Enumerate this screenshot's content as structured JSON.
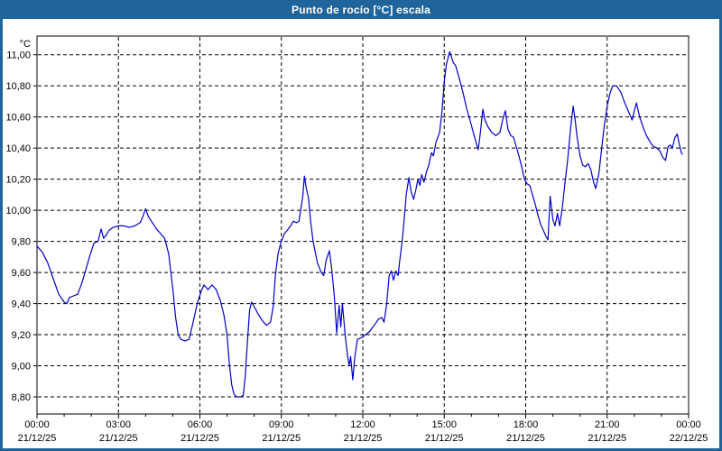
{
  "window": {
    "title": "Punto de rocío [°C] escala"
  },
  "colors": {
    "header_bg": "#1f649b",
    "frame_border": "#1f649b",
    "plot_bg": "#ffffff",
    "plot_border": "#000000",
    "grid": "#000000",
    "line": "#0000c8",
    "text": "#000000"
  },
  "chart_data": {
    "type": "line",
    "title": "Punto de rocío [°C] escala",
    "xlabel": "",
    "ylabel": "°C",
    "grid": true,
    "legend": false,
    "y_axis": {
      "unit_label": "°C",
      "min": 8.69,
      "max": 11.12,
      "tick_min": 8.8,
      "tick_max": 11.0,
      "tick_step": 0.2,
      "decimal_separator": ",",
      "tick_labels": [
        "8,80",
        "9,00",
        "9,20",
        "9,40",
        "9,60",
        "9,80",
        "10,00",
        "10,20",
        "10,40",
        "10,60",
        "10,80",
        "11,00"
      ]
    },
    "x_axis": {
      "hours_span": 24,
      "major_tick_every_hours": 3,
      "minor_tick_every_hours": 1,
      "ticks": [
        {
          "hour": 0,
          "time": "00:00",
          "date": "21/12/25"
        },
        {
          "hour": 3,
          "time": "03:00",
          "date": "21/12/25"
        },
        {
          "hour": 6,
          "time": "06:00",
          "date": "21/12/25"
        },
        {
          "hour": 9,
          "time": "09:00",
          "date": "21/12/25"
        },
        {
          "hour": 12,
          "time": "12:00",
          "date": "21/12/25"
        },
        {
          "hour": 15,
          "time": "15:00",
          "date": "21/12/25"
        },
        {
          "hour": 18,
          "time": "18:00",
          "date": "21/12/25"
        },
        {
          "hour": 21,
          "time": "21:00",
          "date": "21/12/25"
        },
        {
          "hour": 24,
          "time": "00:00",
          "date": "22/12/25"
        }
      ]
    },
    "series": [
      {
        "name": "Punto de rocío",
        "color": "#0000c8",
        "points": [
          [
            0.0,
            9.77
          ],
          [
            0.2,
            9.73
          ],
          [
            0.4,
            9.66
          ],
          [
            0.6,
            9.56
          ],
          [
            0.8,
            9.46
          ],
          [
            1.0,
            9.41
          ],
          [
            1.1,
            9.4
          ],
          [
            1.2,
            9.44
          ],
          [
            1.35,
            9.45
          ],
          [
            1.5,
            9.46
          ],
          [
            1.65,
            9.53
          ],
          [
            1.8,
            9.62
          ],
          [
            1.95,
            9.71
          ],
          [
            2.1,
            9.79
          ],
          [
            2.25,
            9.8
          ],
          [
            2.36,
            9.88
          ],
          [
            2.45,
            9.82
          ],
          [
            2.55,
            9.84
          ],
          [
            2.65,
            9.87
          ],
          [
            2.8,
            9.89
          ],
          [
            3.0,
            9.9
          ],
          [
            3.2,
            9.9
          ],
          [
            3.4,
            9.89
          ],
          [
            3.6,
            9.9
          ],
          [
            3.8,
            9.92
          ],
          [
            3.9,
            9.96
          ],
          [
            4.0,
            10.01
          ],
          [
            4.1,
            9.96
          ],
          [
            4.25,
            9.92
          ],
          [
            4.4,
            9.88
          ],
          [
            4.55,
            9.85
          ],
          [
            4.7,
            9.82
          ],
          [
            4.85,
            9.72
          ],
          [
            5.0,
            9.5
          ],
          [
            5.1,
            9.32
          ],
          [
            5.2,
            9.2
          ],
          [
            5.3,
            9.17
          ],
          [
            5.45,
            9.16
          ],
          [
            5.6,
            9.17
          ],
          [
            5.75,
            9.28
          ],
          [
            5.9,
            9.4
          ],
          [
            6.05,
            9.48
          ],
          [
            6.15,
            9.52
          ],
          [
            6.3,
            9.49
          ],
          [
            6.45,
            9.52
          ],
          [
            6.6,
            9.49
          ],
          [
            6.75,
            9.42
          ],
          [
            6.88,
            9.33
          ],
          [
            7.0,
            9.2
          ],
          [
            7.08,
            9.02
          ],
          [
            7.17,
            8.88
          ],
          [
            7.25,
            8.82
          ],
          [
            7.35,
            8.8
          ],
          [
            7.5,
            8.8
          ],
          [
            7.6,
            8.81
          ],
          [
            7.67,
            8.93
          ],
          [
            7.75,
            9.15
          ],
          [
            7.83,
            9.36
          ],
          [
            7.9,
            9.41
          ],
          [
            8.0,
            9.38
          ],
          [
            8.15,
            9.33
          ],
          [
            8.3,
            9.29
          ],
          [
            8.45,
            9.26
          ],
          [
            8.6,
            9.28
          ],
          [
            8.7,
            9.38
          ],
          [
            8.78,
            9.58
          ],
          [
            8.88,
            9.72
          ],
          [
            8.98,
            9.79
          ],
          [
            9.11,
            9.85
          ],
          [
            9.21,
            9.87
          ],
          [
            9.34,
            9.9
          ],
          [
            9.44,
            9.93
          ],
          [
            9.56,
            9.92
          ],
          [
            9.65,
            9.93
          ],
          [
            9.72,
            10.01
          ],
          [
            9.79,
            10.09
          ],
          [
            9.85,
            10.22
          ],
          [
            9.92,
            10.14
          ],
          [
            10.0,
            10.08
          ],
          [
            10.08,
            9.93
          ],
          [
            10.17,
            9.8
          ],
          [
            10.33,
            9.66
          ],
          [
            10.47,
            9.6
          ],
          [
            10.56,
            9.58
          ],
          [
            10.65,
            9.68
          ],
          [
            10.77,
            9.74
          ],
          [
            10.85,
            9.63
          ],
          [
            10.95,
            9.45
          ],
          [
            11.04,
            9.21
          ],
          [
            11.13,
            9.39
          ],
          [
            11.19,
            9.25
          ],
          [
            11.25,
            9.4
          ],
          [
            11.35,
            9.2
          ],
          [
            11.44,
            9.06
          ],
          [
            11.5,
            9.0
          ],
          [
            11.55,
            9.06
          ],
          [
            11.63,
            8.91
          ],
          [
            11.7,
            9.05
          ],
          [
            11.8,
            9.17
          ],
          [
            11.95,
            9.18
          ],
          [
            12.1,
            9.2
          ],
          [
            12.25,
            9.22
          ],
          [
            12.42,
            9.26
          ],
          [
            12.58,
            9.3
          ],
          [
            12.7,
            9.31
          ],
          [
            12.78,
            9.28
          ],
          [
            12.88,
            9.4
          ],
          [
            12.97,
            9.58
          ],
          [
            13.05,
            9.61
          ],
          [
            13.13,
            9.55
          ],
          [
            13.22,
            9.61
          ],
          [
            13.3,
            9.58
          ],
          [
            13.37,
            9.69
          ],
          [
            13.45,
            9.8
          ],
          [
            13.53,
            9.95
          ],
          [
            13.6,
            10.1
          ],
          [
            13.7,
            10.21
          ],
          [
            13.78,
            10.12
          ],
          [
            13.87,
            10.07
          ],
          [
            13.95,
            10.13
          ],
          [
            14.03,
            10.2
          ],
          [
            14.1,
            10.16
          ],
          [
            14.17,
            10.23
          ],
          [
            14.25,
            10.18
          ],
          [
            14.35,
            10.25
          ],
          [
            14.43,
            10.29
          ],
          [
            14.53,
            10.37
          ],
          [
            14.6,
            10.35
          ],
          [
            14.7,
            10.44
          ],
          [
            14.83,
            10.5
          ],
          [
            14.92,
            10.64
          ],
          [
            15.0,
            10.83
          ],
          [
            15.08,
            10.94
          ],
          [
            15.2,
            11.02
          ],
          [
            15.33,
            10.95
          ],
          [
            15.42,
            10.93
          ],
          [
            15.55,
            10.85
          ],
          [
            15.7,
            10.75
          ],
          [
            15.83,
            10.65
          ],
          [
            15.95,
            10.58
          ],
          [
            16.1,
            10.48
          ],
          [
            16.25,
            10.39
          ],
          [
            16.33,
            10.5
          ],
          [
            16.42,
            10.65
          ],
          [
            16.5,
            10.58
          ],
          [
            16.6,
            10.54
          ],
          [
            16.75,
            10.5
          ],
          [
            16.9,
            10.48
          ],
          [
            17.05,
            10.5
          ],
          [
            17.15,
            10.58
          ],
          [
            17.25,
            10.64
          ],
          [
            17.35,
            10.52
          ],
          [
            17.45,
            10.48
          ],
          [
            17.55,
            10.47
          ],
          [
            17.65,
            10.41
          ],
          [
            17.75,
            10.35
          ],
          [
            17.85,
            10.28
          ],
          [
            17.95,
            10.2
          ],
          [
            18.05,
            10.17
          ],
          [
            18.15,
            10.16
          ],
          [
            18.25,
            10.1
          ],
          [
            18.35,
            10.04
          ],
          [
            18.45,
            9.97
          ],
          [
            18.55,
            9.91
          ],
          [
            18.65,
            9.87
          ],
          [
            18.75,
            9.83
          ],
          [
            18.82,
            9.81
          ],
          [
            18.9,
            10.09
          ],
          [
            19.0,
            9.94
          ],
          [
            19.08,
            9.9
          ],
          [
            19.17,
            9.98
          ],
          [
            19.25,
            9.9
          ],
          [
            19.35,
            10.02
          ],
          [
            19.45,
            10.18
          ],
          [
            19.55,
            10.33
          ],
          [
            19.65,
            10.52
          ],
          [
            19.75,
            10.67
          ],
          [
            19.82,
            10.58
          ],
          [
            19.9,
            10.46
          ],
          [
            20.0,
            10.35
          ],
          [
            20.1,
            10.29
          ],
          [
            20.2,
            10.28
          ],
          [
            20.3,
            10.3
          ],
          [
            20.4,
            10.26
          ],
          [
            20.5,
            10.18
          ],
          [
            20.58,
            10.14
          ],
          [
            20.7,
            10.24
          ],
          [
            20.8,
            10.4
          ],
          [
            20.9,
            10.55
          ],
          [
            21.0,
            10.67
          ],
          [
            21.1,
            10.75
          ],
          [
            21.2,
            10.8
          ],
          [
            21.35,
            10.8
          ],
          [
            21.5,
            10.76
          ],
          [
            21.65,
            10.69
          ],
          [
            21.8,
            10.63
          ],
          [
            21.92,
            10.58
          ],
          [
            22.0,
            10.64
          ],
          [
            22.08,
            10.69
          ],
          [
            22.2,
            10.6
          ],
          [
            22.33,
            10.53
          ],
          [
            22.45,
            10.48
          ],
          [
            22.58,
            10.44
          ],
          [
            22.7,
            10.41
          ],
          [
            22.83,
            10.4
          ],
          [
            22.95,
            10.38
          ],
          [
            23.05,
            10.34
          ],
          [
            23.15,
            10.32
          ],
          [
            23.25,
            10.41
          ],
          [
            23.33,
            10.42
          ],
          [
            23.4,
            10.4
          ],
          [
            23.5,
            10.47
          ],
          [
            23.58,
            10.49
          ],
          [
            23.65,
            10.43
          ],
          [
            23.73,
            10.37
          ],
          [
            23.77,
            10.36
          ]
        ]
      }
    ]
  }
}
